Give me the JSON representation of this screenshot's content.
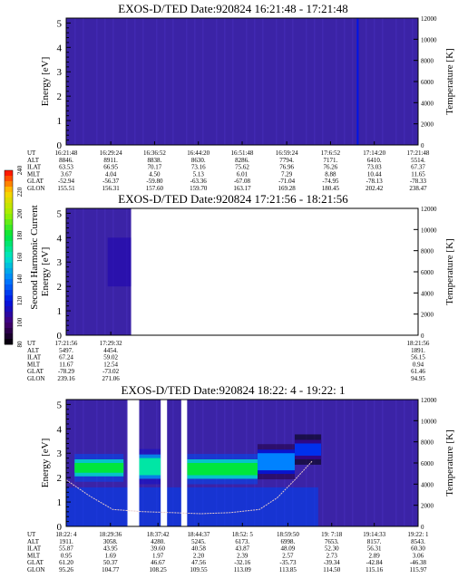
{
  "colorbar": {
    "label": "Second Harmonic Current",
    "ticks": [
      "80",
      "100",
      "120",
      "140",
      "160",
      "180",
      "200",
      "220",
      "240"
    ]
  },
  "panels": [
    {
      "title": "EXOS-D/TED   Date:920824  16:21:48 - 17:21:48",
      "ylabel": "Energy [eV]",
      "y2label": "Temperature [K]",
      "y_ticks": [
        "0",
        "1",
        "2",
        "3",
        "4",
        "5"
      ],
      "y2_ticks": [
        "0",
        "2000",
        "4000",
        "6000",
        "8000",
        "10000",
        "12000"
      ],
      "ephem_labels": [
        "UT",
        "ALT",
        "ILAT",
        "MLT",
        "GLAT",
        "GLON"
      ],
      "columns": [
        [
          "16:21:48",
          "8846.",
          "63.53",
          "3.67",
          "-52.94",
          "155.51"
        ],
        [
          "16:29:24",
          "8911.",
          "66.95",
          "4.04",
          "-56.37",
          "156.31"
        ],
        [
          "16:36:52",
          "8838.",
          "70.17",
          "4.50",
          "-59.80",
          "157.60"
        ],
        [
          "16:44:20",
          "8630.",
          "73.16",
          "5.13",
          "-63.36",
          "159.70"
        ],
        [
          "16:51:48",
          "8286.",
          "75.62",
          "6.01",
          "-67.08",
          "163.17"
        ],
        [
          "16:59:24",
          "7794.",
          "76.96",
          "7.29",
          "-71.04",
          "169.28"
        ],
        [
          "17:6:52",
          "7171.",
          "76.26",
          "8.88",
          "-74.95",
          "180.45"
        ],
        [
          "17:14:20",
          "6410.",
          "73.03",
          "10.44",
          "-78.13",
          "202.42"
        ],
        [
          "17:21:48",
          "5514.",
          "67.37",
          "11.65",
          "-78.33",
          "238.47"
        ]
      ]
    },
    {
      "title": "EXOS-D/TED   Date:920824  17:21:56 - 18:21:56",
      "ylabel": "Energy [eV]",
      "y2label": "Temperature [K]",
      "y_ticks": [
        "0",
        "1",
        "2",
        "3",
        "4",
        "5"
      ],
      "y2_ticks": [
        "0",
        "2000",
        "4000",
        "6000",
        "8000",
        "10000",
        "12000"
      ],
      "ephem_labels": [
        "UT",
        "ALT",
        "ILAT",
        "MLT",
        "GLAT",
        "GLON"
      ],
      "columns": [
        [
          "17:21:56",
          "5497.",
          "67.24",
          "11.67",
          "-78.29",
          "239.16"
        ],
        [
          "17:29:32",
          "4454.",
          "59.02",
          "12.54",
          "-73.02",
          "271.06"
        ],
        [
          "18:21:56",
          "1891.",
          "56.15",
          "0.94",
          "61.46",
          "94.95"
        ]
      ]
    },
    {
      "title": "EXOS-D/TED   Date:920824  18:22: 4 - 19:22: 1",
      "ylabel": "Energy [eV]",
      "y2label": "Temperature [K]",
      "y_ticks": [
        "0",
        "1",
        "2",
        "3",
        "4",
        "5"
      ],
      "y2_ticks": [
        "0",
        "2000",
        "4000",
        "6000",
        "8000",
        "10000",
        "12000"
      ],
      "ephem_labels": [
        "UT",
        "ALT",
        "ILAT",
        "MLT",
        "GLAT",
        "GLON"
      ],
      "columns": [
        [
          "18:22: 4",
          "1911.",
          "55.87",
          "0.95",
          "61.20",
          "95.26"
        ],
        [
          "18:29:36",
          "3058.",
          "43.95",
          "1.69",
          "50.37",
          "104.77"
        ],
        [
          "18:37:42",
          "4280.",
          "39.60",
          "1.97",
          "46.67",
          "108.25"
        ],
        [
          "18:44:37",
          "5245.",
          "40.58",
          "2.20",
          "47.56",
          "109.55"
        ],
        [
          "18:52: 5",
          "6173.",
          "43.87",
          "2.39",
          "-32.16",
          "113.09"
        ],
        [
          "18:59:50",
          "6998.",
          "48.09",
          "2.57",
          "-35.73",
          "113.85"
        ],
        [
          "19: 7:18",
          "7653.",
          "52.30",
          "2.73",
          "-39.34",
          "114.50"
        ],
        [
          "19:14:33",
          "8157.",
          "56.31",
          "2.89",
          "-42.84",
          "115.16"
        ],
        [
          "19:22: 1",
          "8543.",
          "60.30",
          "3.06",
          "-46.38",
          "115.97"
        ]
      ]
    }
  ],
  "chart_data": [
    {
      "type": "heatmap",
      "title": "EXOS-D/TED   Date:920824  16:21:48 - 17:21:48",
      "ylabel": "Energy [eV]",
      "y2label": "Temperature [K]",
      "ylim": [
        0,
        5.2
      ],
      "y2lim": [
        0,
        12000
      ],
      "x_start": "16:21:48",
      "x_end": "17:21:48",
      "background_level": 100,
      "features": [
        {
          "x": "17:11:30",
          "energy": [
            0,
            5.2
          ],
          "level": 120
        }
      ]
    },
    {
      "type": "heatmap",
      "title": "EXOS-D/TED   Date:920824  17:21:56 - 18:21:56",
      "ylabel": "Energy [eV]",
      "y2label": "Temperature [K]",
      "ylim": [
        0,
        5.2
      ],
      "y2lim": [
        0,
        12000
      ],
      "x_start": "17:21:56",
      "x_end": "18:21:56",
      "data_until": "17:33:00",
      "background_level": 100,
      "features": [
        {
          "x": [
            "17:29:00",
            "17:33:00"
          ],
          "energy": [
            2,
            4
          ],
          "level": 110
        }
      ]
    },
    {
      "type": "heatmap",
      "title": "EXOS-D/TED   Date:920824  18:22: 4 - 19:22: 1",
      "ylabel": "Energy [eV]",
      "y2label": "Temperature [K]",
      "ylim": [
        0,
        5.2
      ],
      "y2lim": [
        0,
        12000
      ],
      "x_start": "18:22:04",
      "x_end": "19:22:01",
      "background_level": 100,
      "data_gaps": [
        [
          "18:32:30",
          "18:34:30"
        ],
        [
          "18:38:10",
          "18:39:15"
        ],
        [
          "18:41:40",
          "18:42:40"
        ]
      ],
      "bands": [
        {
          "x": [
            "18:23:30",
            "18:31:50"
          ],
          "energy": [
            2.2,
            2.6
          ],
          "level": 180
        },
        {
          "x": [
            "18:34:30",
            "18:38:10"
          ],
          "energy": [
            2.1,
            2.8
          ],
          "level": 165
        },
        {
          "x": [
            "18:42:40",
            "18:54:40"
          ],
          "energy": [
            2.1,
            2.6
          ],
          "level": 180
        },
        {
          "x": [
            "18:54:40",
            "19:01:00"
          ],
          "energy": [
            2.3,
            3.0
          ],
          "level": 140
        },
        {
          "x": [
            "19:01:00",
            "19:05:30"
          ],
          "energy": [
            2.9,
            3.4
          ],
          "level": 125
        }
      ],
      "temperature_trace": {
        "x": [
          "18:22:04",
          "18:26:00",
          "18:30:00",
          "18:35:00",
          "18:40:00",
          "18:45:00",
          "18:50:00",
          "18:55:00",
          "18:58:00",
          "19:01:00",
          "19:04:00"
        ],
        "y": [
          4400,
          2900,
          1600,
          1400,
          1300,
          1200,
          1300,
          1600,
          2700,
          4400,
          6200
        ]
      }
    }
  ]
}
